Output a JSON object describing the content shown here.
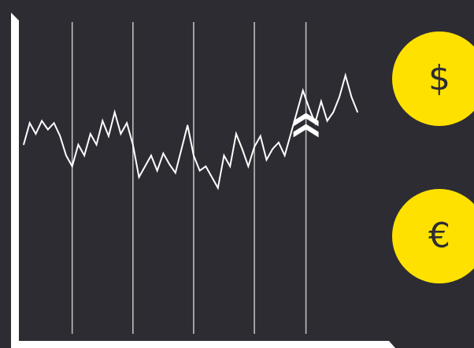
{
  "colors": {
    "background": "#2d2c33",
    "line": "#ffffff",
    "gridline": "#bdbdbd",
    "coin_fill": "#ffe100",
    "coin_symbol": "#2d2c33",
    "arrow_fill": "#ffffff"
  },
  "coins": {
    "dollar": {
      "symbol": "$",
      "icon": "dollar-coin-icon"
    },
    "euro": {
      "symbol": "€",
      "icon": "euro-coin-icon"
    }
  },
  "chart_data": {
    "type": "line",
    "grid": "vertical",
    "xlim": [
      0,
      59
    ],
    "ylim": [
      0,
      10
    ],
    "vertical_gridlines_at_x": [
      8,
      18,
      28,
      38,
      46.5
    ],
    "series": [
      {
        "values": [
          5.5,
          6.5,
          6.0,
          6.6,
          6.2,
          6.5,
          5.9,
          5.0,
          4.5,
          5.5,
          5.0,
          6.0,
          5.5,
          6.6,
          5.9,
          7.0,
          6.0,
          6.5,
          5.5,
          4.0,
          4.5,
          5.0,
          4.3,
          5.1,
          4.6,
          4.2,
          5.3,
          6.4,
          5.0,
          4.3,
          4.5,
          4.0,
          3.5,
          5.0,
          4.5,
          6.0,
          5.3,
          4.5,
          5.4,
          5.9,
          4.8,
          5.3,
          5.6,
          5.0,
          6.0,
          7.0,
          8.0,
          7.2,
          6.5,
          7.5,
          6.6,
          7.0,
          7.7,
          8.7,
          7.7,
          7.0
        ]
      }
    ],
    "annotation": {
      "type": "chevrons-up",
      "count": 2,
      "at_x": 46.5,
      "at_y": 6.6
    }
  }
}
